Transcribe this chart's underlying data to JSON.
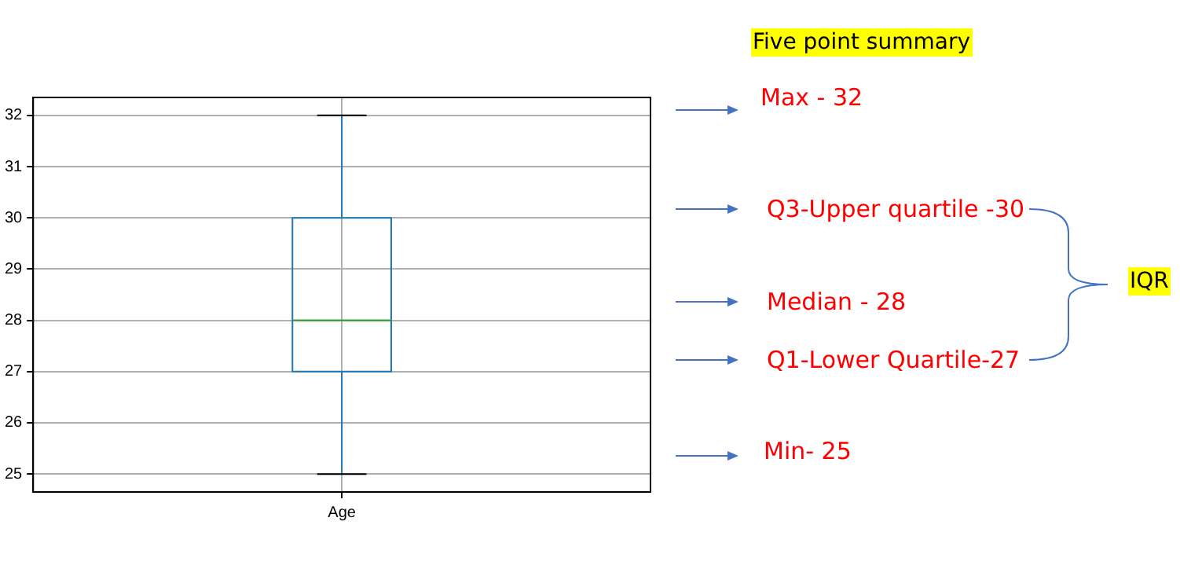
{
  "chart_data": {
    "type": "box",
    "categories": [
      "Age"
    ],
    "series": [
      {
        "color": "#1f77b4",
        "boxes": [
          {
            "low": 25,
            "q1": 27,
            "median": 28,
            "q3": 30,
            "high": 32
          }
        ]
      }
    ],
    "ylim": [
      24.65,
      32.35
    ],
    "yticks": [
      25,
      26,
      27,
      28,
      29,
      30,
      31,
      32
    ],
    "grid": true,
    "annotations": [
      "Five point summary",
      "Max - 32",
      "Q3-Upper quartile -30",
      "Median - 28",
      "Q1-Lower Quartile-27",
      "Min- 25",
      "IQR"
    ]
  }
}
